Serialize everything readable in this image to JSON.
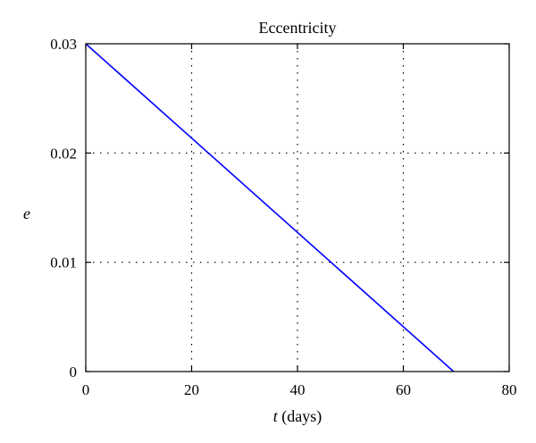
{
  "chart_data": {
    "type": "line",
    "title": "Eccentricity",
    "ylabel": "e",
    "xlabel_var": "t",
    "xlabel_unit": " (days)",
    "xlim": [
      0,
      80
    ],
    "ylim": [
      0,
      0.03
    ],
    "xticks": [
      0,
      20,
      40,
      60,
      80
    ],
    "xtick_labels": [
      "0",
      "20",
      "40",
      "60",
      "80"
    ],
    "yticks": [
      0,
      0.01,
      0.02,
      0.03
    ],
    "ytick_labels": [
      "0",
      "0.01",
      "0.02",
      "0.03"
    ],
    "grid": true,
    "series": [
      {
        "color": "#0000ff",
        "x": [
          0,
          69.5
        ],
        "y": [
          0.03,
          0
        ]
      }
    ]
  }
}
